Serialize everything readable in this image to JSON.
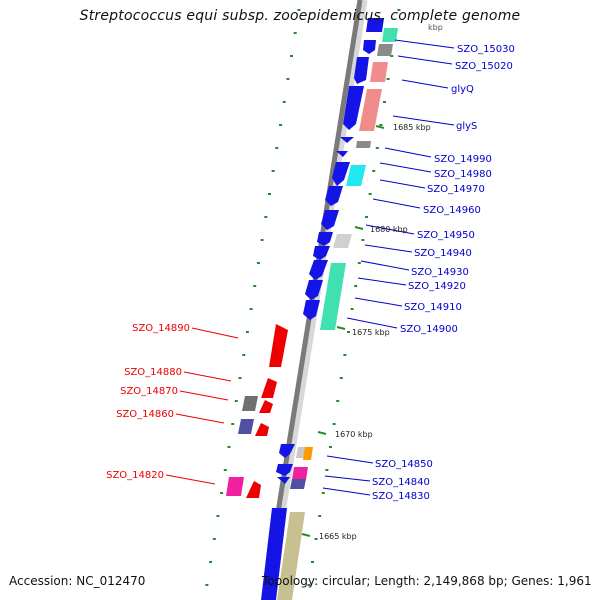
{
  "title": "Streptococcus equi subsp. zooepidemicus, complete genome",
  "accession_label": "Accession: NC_012470",
  "topology_label": "Topology: circular; Length: 2,149,868 bp; Genes: 1,961",
  "colors": {
    "backbone": "#808080",
    "tick": "#2a8a2a",
    "plus_strand_label": "#0000cc",
    "minus_strand_label": "#ee0000",
    "cds": "#1414e6",
    "rRNA": "#40e0b0",
    "tRNA_like": "#f08c8c",
    "grey": "#8a8a8a",
    "cyan": "#20e8f0",
    "khaki": "#c8c090",
    "pink": "#f020a0",
    "slate": "#5050a0",
    "orange": "#ff9900",
    "red": "#ee0000"
  },
  "scale_labels": [
    "1685 kbp",
    "1680 kbp",
    "1675 kbp",
    "1670 kbp",
    "1665 kbp"
  ],
  "partial_label": "kbp",
  "gene_labels_plus": [
    "SZO_15030",
    "SZO_15020",
    "glyQ",
    "glyS",
    "SZO_14990",
    "SZO_14980",
    "SZO_14970",
    "SZO_14960",
    "SZO_14950",
    "SZO_14940",
    "SZO_14930",
    "SZO_14920",
    "SZO_14910",
    "SZO_14900",
    "SZO_14850",
    "SZO_14840",
    "SZO_14830"
  ],
  "gene_labels_minus": [
    "SZO_14890",
    "SZO_14880",
    "SZO_14870",
    "SZO_14860",
    "SZO_14820"
  ]
}
